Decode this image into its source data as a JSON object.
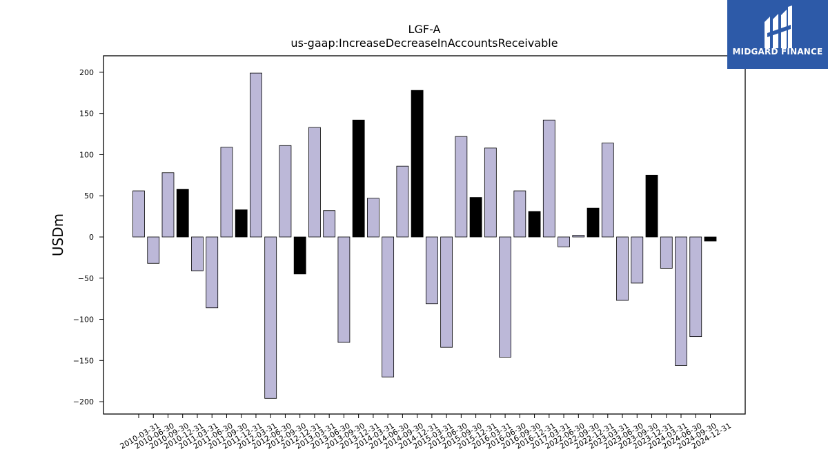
{
  "brand": {
    "name": "MIDGARD FINANCE",
    "icon": "midgard-logo-icon",
    "bg_color": "#2d5aa8"
  },
  "chart_data": {
    "type": "bar",
    "title": "LGF-A",
    "subtitle": "us-gaap:IncreaseDecreaseInAccountsReceivable",
    "xlabel": "",
    "ylabel": "USDm",
    "ylim": [
      -215,
      220
    ],
    "yticks": [
      200,
      150,
      100,
      50,
      0,
      -50,
      -100,
      -150,
      -200
    ],
    "grid": false,
    "colors": {
      "quarter": "#bcb8d8",
      "year_end": "#000000",
      "edge": "#000000"
    },
    "categories": [
      "2010-03-31",
      "2010-06-30",
      "2010-09-30",
      "2010-12-31",
      "2011-03-31",
      "2011-06-30",
      "2011-09-30",
      "2011-12-31",
      "2012-03-31",
      "2012-06-30",
      "2012-09-30",
      "2012-12-31",
      "2013-03-31",
      "2013-06-30",
      "2013-09-30",
      "2013-12-31",
      "2014-03-31",
      "2014-06-30",
      "2014-09-30",
      "2014-12-31",
      "2015-03-31",
      "2015-06-30",
      "2015-09-30",
      "2015-12-31",
      "2016-03-31",
      "2016-06-30",
      "2016-09-30",
      "2016-12-31",
      "2017-03-31",
      "2022-06-30",
      "2022-09-30",
      "2022-12-31",
      "2023-03-31",
      "2023-06-30",
      "2023-09-30",
      "2023-12-31",
      "2024-03-31",
      "2024-06-30",
      "2024-09-30",
      "2024-12-31"
    ],
    "values": [
      56,
      -32,
      78,
      58,
      -41,
      -86,
      109,
      33,
      199,
      -196,
      111,
      -45,
      133,
      32,
      -128,
      142,
      47,
      -170,
      86,
      178,
      -81,
      -134,
      122,
      48,
      108,
      -146,
      56,
      31,
      142,
      -12,
      2,
      35,
      114,
      -77,
      -56,
      75,
      -38,
      -156,
      -121,
      -5
    ]
  }
}
